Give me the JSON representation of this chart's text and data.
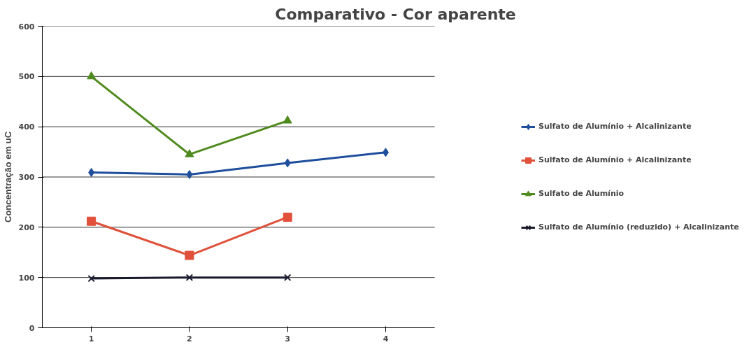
{
  "chart_data": {
    "type": "line",
    "title": "Comparativo - Cor aparente",
    "ylabel": "Concentração em uC",
    "categories": [
      "1",
      "2",
      "3",
      "4"
    ],
    "ylim": [
      0,
      600
    ],
    "yticks": [
      0,
      100,
      200,
      300,
      400,
      500,
      600
    ],
    "grid": "y",
    "legend": "right",
    "series": [
      {
        "name": "Sulfato de Alumínio + Alcalinizante",
        "color": "#1f4e9c",
        "marker": "diamond",
        "values": [
          309,
          305,
          328,
          349
        ]
      },
      {
        "name": "Sulfato de Alumínio + Alcalinizante",
        "color": "#e0503a",
        "marker": "square",
        "values": [
          212,
          144,
          220,
          null
        ]
      },
      {
        "name": "Sulfato de Alumínio",
        "color": "#4f8a1e",
        "marker": "triangle",
        "values": [
          500,
          345,
          412,
          null
        ]
      },
      {
        "name": "Sulfato de Alumínio (reduzido) + Alcalinizante",
        "color": "#1a1a2e",
        "marker": "cross",
        "values": [
          98,
          100,
          100,
          null
        ]
      }
    ]
  }
}
